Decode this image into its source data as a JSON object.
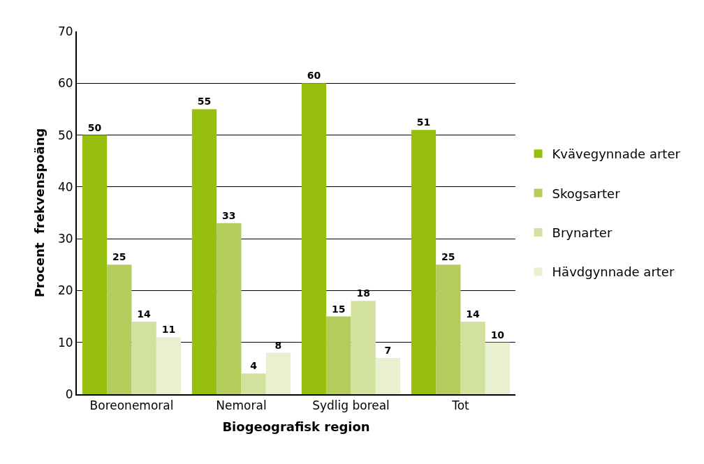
{
  "chart_data": {
    "type": "bar",
    "xlabel": "Biogeografisk region",
    "ylabel": "Procent  frekvenspoäng",
    "categories": [
      "Boreonemoral",
      "Nemoral",
      "Sydlig boreal",
      "Tot"
    ],
    "series": [
      {
        "name": "Kvävegynnade arter",
        "color": "#97bf0d",
        "values": [
          50,
          55,
          60,
          51
        ]
      },
      {
        "name": "Skogsarter",
        "color": "#b3cc5c",
        "values": [
          25,
          33,
          15,
          25
        ]
      },
      {
        "name": "Brynarter",
        "color": "#d2e29e",
        "values": [
          14,
          4,
          18,
          14
        ]
      },
      {
        "name": "Hävdgynnade arter",
        "color": "#e8f0cf",
        "values": [
          11,
          8,
          7,
          10
        ]
      }
    ],
    "ylim": [
      0,
      70
    ],
    "yticks": [
      0,
      10,
      20,
      30,
      40,
      50,
      60,
      70
    ],
    "grid": "y",
    "legend": "right",
    "data_labels": true
  }
}
